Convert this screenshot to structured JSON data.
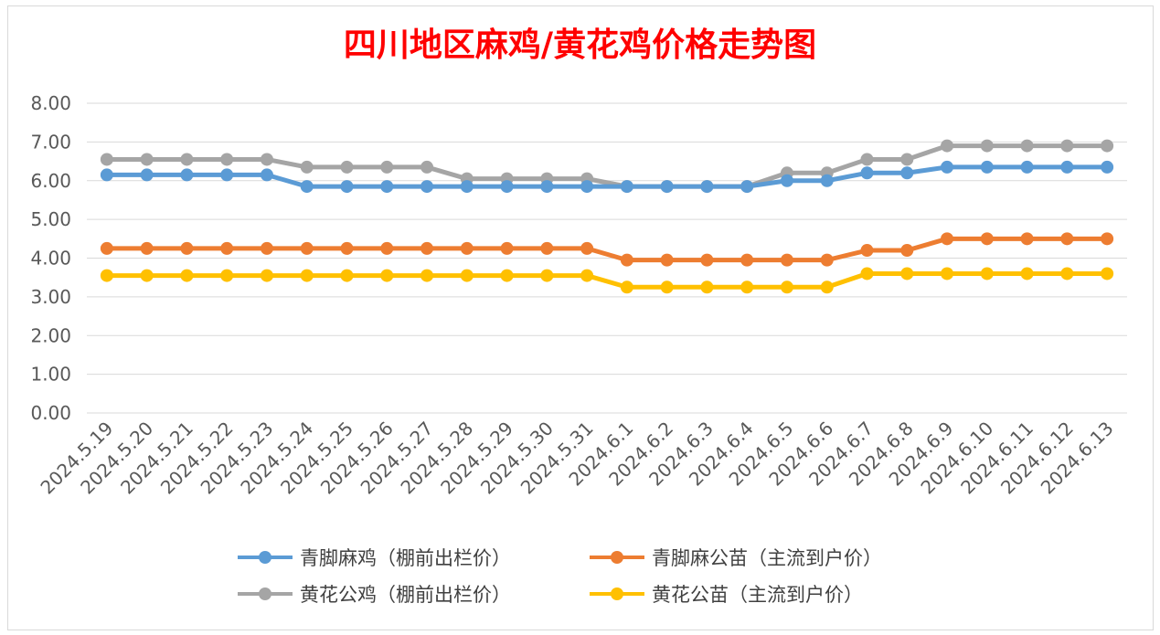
{
  "chart_data": {
    "type": "line",
    "title": "四川地区麻鸡/黄花鸡价格走势图",
    "xlabel": "",
    "ylabel": "",
    "ylim": [
      0,
      8
    ],
    "yticks": [
      "0.00",
      "1.00",
      "2.00",
      "3.00",
      "4.00",
      "5.00",
      "6.00",
      "7.00",
      "8.00"
    ],
    "grid": true,
    "legend_position": "bottom",
    "categories": [
      "2024.5.19",
      "2024.5.20",
      "2024.5.21",
      "2024.5.22",
      "2024.5.23",
      "2024.5.24",
      "2024.5.25",
      "2024.5.26",
      "2024.5.27",
      "2024.5.28",
      "2024.5.29",
      "2024.5.30",
      "2024.5.31",
      "2024.6.1",
      "2024.6.2",
      "2024.6.3",
      "2024.6.4",
      "2024.6.5",
      "2024.6.6",
      "2024.6.7",
      "2024.6.8",
      "2024.6.9",
      "2024.6.10",
      "2024.6.11",
      "2024.6.12",
      "2024.6.13"
    ],
    "series": [
      {
        "name": "青脚麻鸡（棚前出栏价）",
        "color": "#5b9bd5",
        "values": [
          6.15,
          6.15,
          6.15,
          6.15,
          6.15,
          5.85,
          5.85,
          5.85,
          5.85,
          5.85,
          5.85,
          5.85,
          5.85,
          5.85,
          5.85,
          5.85,
          5.85,
          6.0,
          6.0,
          6.2,
          6.2,
          6.35,
          6.35,
          6.35,
          6.35,
          6.35
        ]
      },
      {
        "name": "青脚麻公苗（主流到户价）",
        "color": "#ed7d31",
        "values": [
          4.25,
          4.25,
          4.25,
          4.25,
          4.25,
          4.25,
          4.25,
          4.25,
          4.25,
          4.25,
          4.25,
          4.25,
          4.25,
          3.95,
          3.95,
          3.95,
          3.95,
          3.95,
          3.95,
          4.2,
          4.2,
          4.5,
          4.5,
          4.5,
          4.5,
          4.5
        ]
      },
      {
        "name": "黄花公鸡（棚前出栏价）",
        "color": "#a5a5a5",
        "values": [
          6.55,
          6.55,
          6.55,
          6.55,
          6.55,
          6.35,
          6.35,
          6.35,
          6.35,
          6.05,
          6.05,
          6.05,
          6.05,
          5.85,
          5.85,
          5.85,
          5.85,
          6.2,
          6.2,
          6.55,
          6.55,
          6.9,
          6.9,
          6.9,
          6.9,
          6.9
        ]
      },
      {
        "name": "黄花公苗（主流到户价）",
        "color": "#ffc000",
        "values": [
          3.55,
          3.55,
          3.55,
          3.55,
          3.55,
          3.55,
          3.55,
          3.55,
          3.55,
          3.55,
          3.55,
          3.55,
          3.55,
          3.25,
          3.25,
          3.25,
          3.25,
          3.25,
          3.25,
          3.6,
          3.6,
          3.6,
          3.6,
          3.6,
          3.6,
          3.6
        ]
      }
    ]
  }
}
